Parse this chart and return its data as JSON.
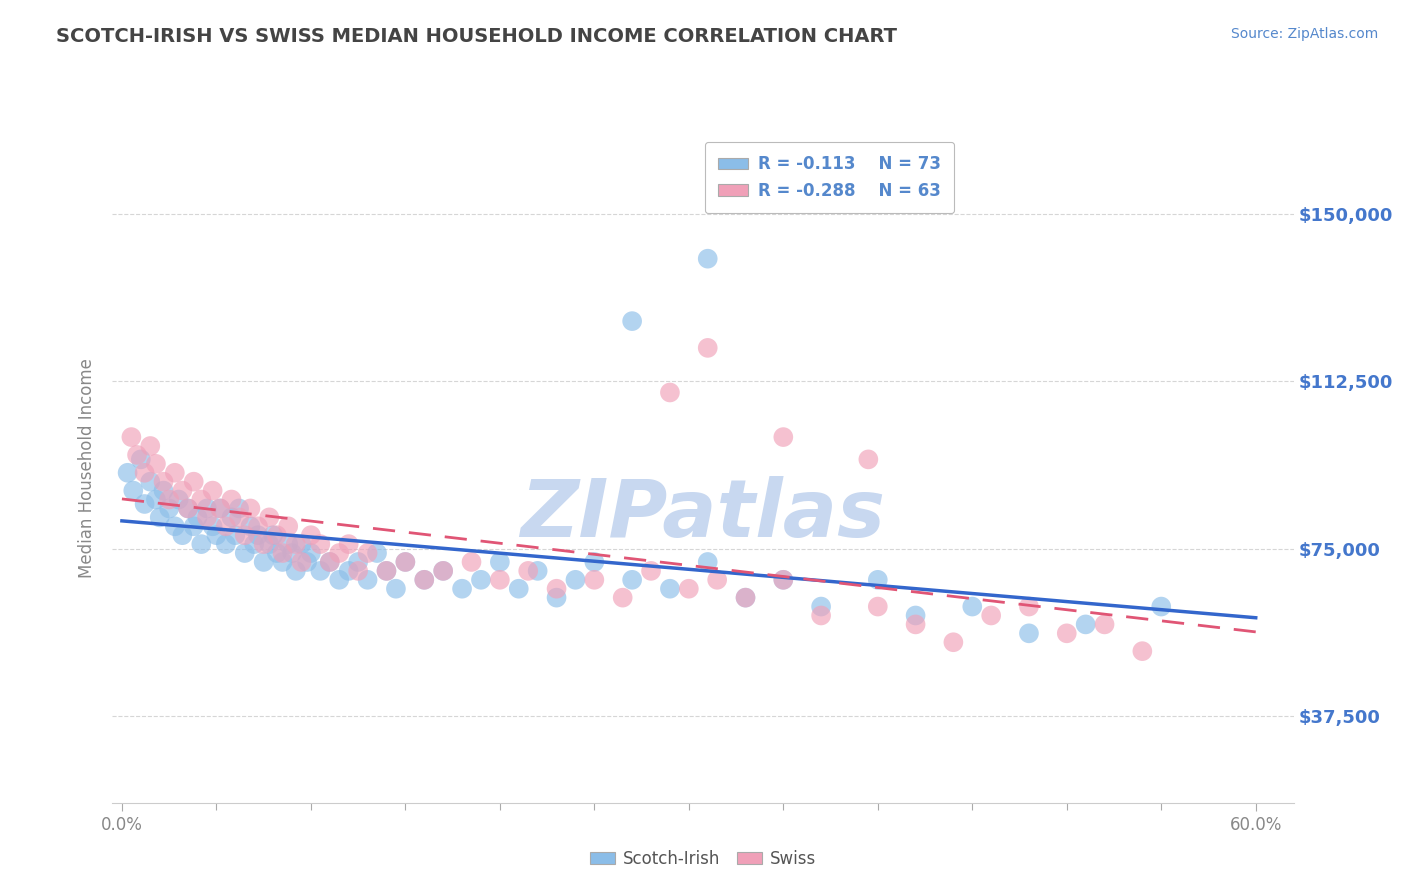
{
  "title": "SCOTCH-IRISH VS SWISS MEDIAN HOUSEHOLD INCOME CORRELATION CHART",
  "source_text": "Source: ZipAtlas.com",
  "ylabel": "Median Household Income",
  "xlim": [
    -0.005,
    0.62
  ],
  "ylim": [
    18000,
    168000
  ],
  "yticks": [
    37500,
    75000,
    112500,
    150000
  ],
  "ytick_labels": [
    "$37,500",
    "$75,000",
    "$112,500",
    "$150,000"
  ],
  "xtick_labels_shown": [
    "0.0%",
    "60.0%"
  ],
  "xticks_shown": [
    0.0,
    0.6
  ],
  "legend_bottom_labels": [
    "Scotch-Irish",
    "Swiss"
  ],
  "scotch_irish_color": "#8bbde8",
  "swiss_color": "#f0a0b8",
  "trend_scotch_color": "#3366cc",
  "trend_swiss_color": "#e05575",
  "background_color": "#ffffff",
  "grid_color": "#cccccc",
  "title_color": "#444444",
  "axis_label_color": "#5588cc",
  "ytick_color": "#4477cc",
  "watermark_color": "#c8d8f0",
  "R_scotch": -0.113,
  "N_scotch": 73,
  "R_swiss": -0.288,
  "N_swiss": 63,
  "scotch_irish_x": [
    0.003,
    0.006,
    0.01,
    0.012,
    0.015,
    0.018,
    0.02,
    0.022,
    0.025,
    0.028,
    0.03,
    0.032,
    0.035,
    0.038,
    0.04,
    0.042,
    0.045,
    0.048,
    0.05,
    0.052,
    0.055,
    0.058,
    0.06,
    0.062,
    0.065,
    0.068,
    0.07,
    0.072,
    0.075,
    0.078,
    0.08,
    0.082,
    0.085,
    0.088,
    0.09,
    0.092,
    0.095,
    0.098,
    0.1,
    0.105,
    0.11,
    0.115,
    0.12,
    0.125,
    0.13,
    0.135,
    0.14,
    0.145,
    0.15,
    0.16,
    0.17,
    0.18,
    0.19,
    0.2,
    0.21,
    0.22,
    0.23,
    0.24,
    0.25,
    0.27,
    0.29,
    0.31,
    0.33,
    0.35,
    0.37,
    0.4,
    0.42,
    0.45,
    0.48,
    0.51,
    0.27,
    0.31,
    0.55
  ],
  "scotch_irish_y": [
    92000,
    88000,
    95000,
    85000,
    90000,
    86000,
    82000,
    88000,
    84000,
    80000,
    86000,
    78000,
    84000,
    80000,
    82000,
    76000,
    84000,
    80000,
    78000,
    84000,
    76000,
    82000,
    78000,
    84000,
    74000,
    80000,
    76000,
    78000,
    72000,
    76000,
    78000,
    74000,
    72000,
    76000,
    74000,
    70000,
    76000,
    72000,
    74000,
    70000,
    72000,
    68000,
    70000,
    72000,
    68000,
    74000,
    70000,
    66000,
    72000,
    68000,
    70000,
    66000,
    68000,
    72000,
    66000,
    70000,
    64000,
    68000,
    72000,
    68000,
    66000,
    72000,
    64000,
    68000,
    62000,
    68000,
    60000,
    62000,
    56000,
    58000,
    126000,
    140000,
    62000
  ],
  "swiss_x": [
    0.005,
    0.008,
    0.012,
    0.015,
    0.018,
    0.022,
    0.025,
    0.028,
    0.032,
    0.035,
    0.038,
    0.042,
    0.045,
    0.048,
    0.052,
    0.055,
    0.058,
    0.062,
    0.065,
    0.068,
    0.072,
    0.075,
    0.078,
    0.082,
    0.085,
    0.088,
    0.092,
    0.095,
    0.1,
    0.105,
    0.11,
    0.115,
    0.12,
    0.125,
    0.13,
    0.14,
    0.15,
    0.16,
    0.17,
    0.185,
    0.2,
    0.215,
    0.23,
    0.25,
    0.265,
    0.28,
    0.3,
    0.315,
    0.33,
    0.35,
    0.37,
    0.4,
    0.42,
    0.44,
    0.46,
    0.48,
    0.5,
    0.52,
    0.54,
    0.29,
    0.31,
    0.35,
    0.395
  ],
  "swiss_y": [
    100000,
    96000,
    92000,
    98000,
    94000,
    90000,
    86000,
    92000,
    88000,
    84000,
    90000,
    86000,
    82000,
    88000,
    84000,
    80000,
    86000,
    82000,
    78000,
    84000,
    80000,
    76000,
    82000,
    78000,
    74000,
    80000,
    76000,
    72000,
    78000,
    76000,
    72000,
    74000,
    76000,
    70000,
    74000,
    70000,
    72000,
    68000,
    70000,
    72000,
    68000,
    70000,
    66000,
    68000,
    64000,
    70000,
    66000,
    68000,
    64000,
    68000,
    60000,
    62000,
    58000,
    54000,
    60000,
    62000,
    56000,
    58000,
    52000,
    110000,
    120000,
    100000,
    95000
  ]
}
